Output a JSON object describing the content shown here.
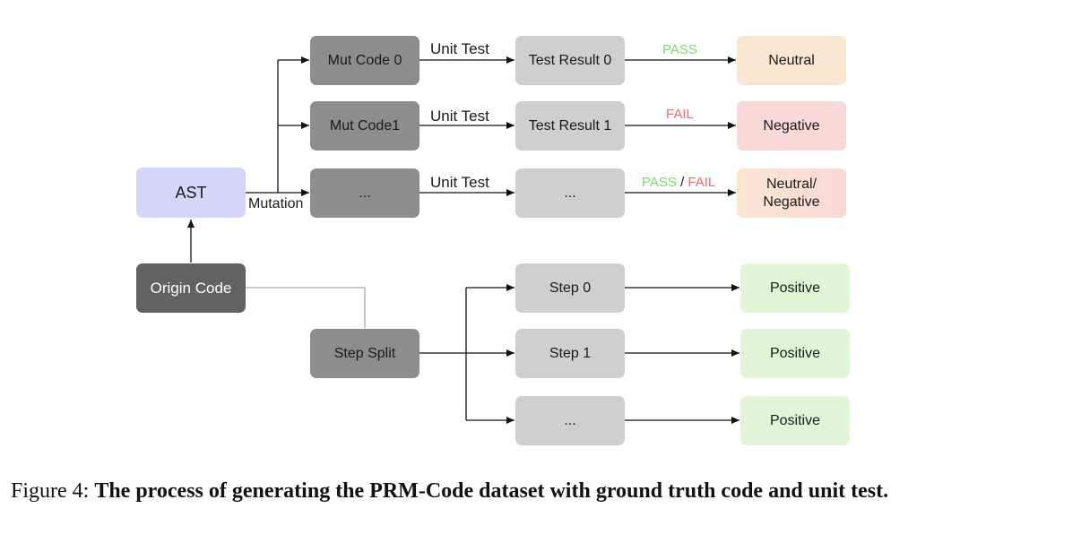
{
  "nodes": {
    "ast": "AST",
    "origin_code": "Origin Code",
    "mut_code_0": "Mut Code 0",
    "mut_code_1": "Mut Code1",
    "mut_code_n": "...",
    "test_result_0": "Test Result 0",
    "test_result_1": "Test Result 1",
    "test_result_n": "...",
    "neutral": "Neutral",
    "negative": "Negative",
    "neutral_negative_line1": "Neutral/",
    "neutral_negative_line2": "Negative",
    "step_split": "Step Split",
    "step_0": "Step 0",
    "step_1": "Step 1",
    "step_n": "...",
    "positive_0": "Positive",
    "positive_1": "Positive",
    "positive_n": "Positive"
  },
  "edges": {
    "mutation": "Mutation",
    "unit_test_0": "Unit Test",
    "unit_test_1": "Unit Test",
    "unit_test_n": "Unit Test",
    "pass_0": "PASS",
    "fail_1": "FAIL",
    "pass_n": "PASS",
    "slash_n": " / ",
    "fail_n": "FAIL"
  },
  "caption": {
    "prefix": "Figure 4:",
    "text": "The process of generating the PRM-Code dataset with ground truth code and unit test."
  },
  "colors": {
    "ast": "#d3d8fb",
    "origin": "#626262",
    "mut": "#8d8d8d",
    "result": "#cfcfcf",
    "neutral": "#fbe6d2",
    "negative": "#f9d8d8",
    "positive": "#e2f6d7",
    "pass": "#7fd86a",
    "fail": "#f26b6b"
  }
}
